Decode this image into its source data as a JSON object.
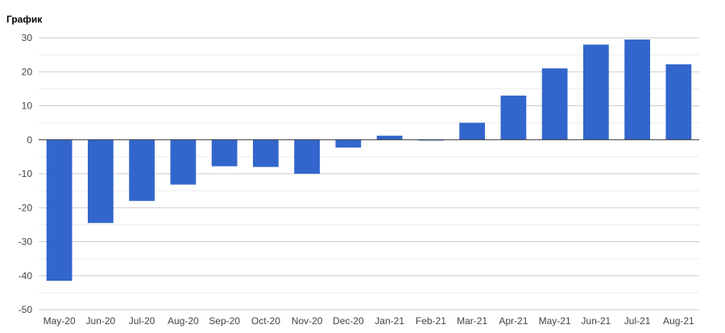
{
  "chart_data": {
    "type": "bar",
    "title": "График",
    "xlabel": "",
    "ylabel": "",
    "categories": [
      "May-20",
      "Jun-20",
      "Jul-20",
      "Aug-20",
      "Sep-20",
      "Oct-20",
      "Nov-20",
      "Dec-20",
      "Jan-21",
      "Feb-21",
      "Mar-21",
      "Apr-21",
      "May-21",
      "Jun-21",
      "Jul-21",
      "Aug-21"
    ],
    "values": [
      -41.5,
      -24.5,
      -18,
      -13.2,
      -7.8,
      -8,
      -10,
      -2.3,
      1.2,
      -0.2,
      5,
      13,
      21,
      28,
      29.5,
      22.2
    ],
    "ylim": [
      -50,
      30
    ],
    "yticks": [
      30,
      20,
      10,
      0,
      -10,
      -20,
      -30,
      -40,
      -50
    ],
    "grid": true,
    "legend": "none",
    "bar_color": "#3366cc",
    "gridline_color": "#cccccc",
    "zero_line_color": "#333333"
  }
}
